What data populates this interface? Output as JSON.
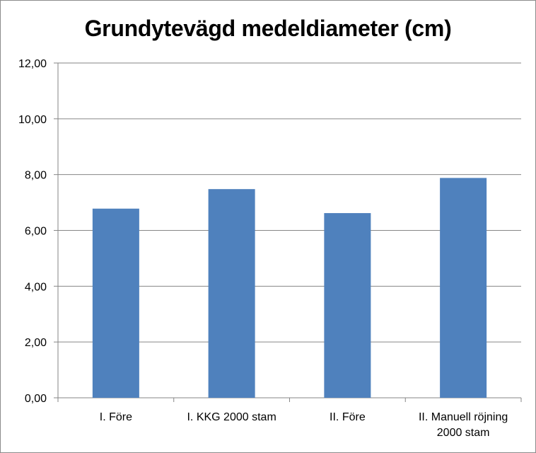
{
  "chart_data": {
    "type": "bar",
    "title": "Grundytevägd medeldiameter (cm)",
    "xlabel": "",
    "ylabel": "",
    "categories": [
      [
        "I. Före"
      ],
      [
        "I. KKG 2000 stam"
      ],
      [
        "II. Före"
      ],
      [
        "II. Manuell röjning",
        "2000 stam"
      ]
    ],
    "values": [
      6.78,
      7.48,
      6.62,
      7.88
    ],
    "ylim": [
      0,
      12
    ],
    "yticks": [
      "0,00",
      "2,00",
      "4,00",
      "6,00",
      "8,00",
      "10,00",
      "12,00"
    ],
    "ytick_values": [
      0,
      2,
      4,
      6,
      8,
      10,
      12
    ],
    "grid": true,
    "legend": "none",
    "bar_color": "#4f81bd",
    "grid_color": "#868686"
  }
}
